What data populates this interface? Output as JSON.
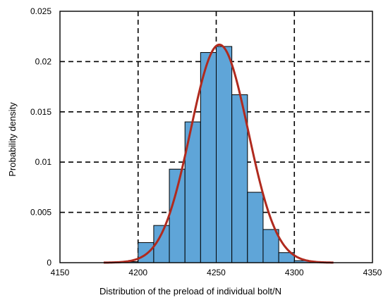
{
  "chart_data": {
    "type": "bar",
    "subtype": "histogram-with-density-curve",
    "xlabel": "Distribution of the preload of individual bolt/N",
    "ylabel": "Probability density",
    "xlim": [
      4150,
      4350
    ],
    "ylim": [
      0,
      0.025
    ],
    "x_ticks": [
      "4150",
      "4200",
      "4250",
      "4300",
      "4350"
    ],
    "y_ticks": [
      "0",
      "0.005",
      "0.01",
      "0.015",
      "0.02",
      "0.025"
    ],
    "grid": true,
    "bin_width": 10,
    "bins": [
      {
        "start": 4190,
        "end": 4200,
        "value": 0.0001
      },
      {
        "start": 4200,
        "end": 4210,
        "value": 0.002
      },
      {
        "start": 4210,
        "end": 4220,
        "value": 0.0037
      },
      {
        "start": 4220,
        "end": 4230,
        "value": 0.0093
      },
      {
        "start": 4230,
        "end": 4240,
        "value": 0.014
      },
      {
        "start": 4240,
        "end": 4250,
        "value": 0.0209
      },
      {
        "start": 4250,
        "end": 4260,
        "value": 0.0215
      },
      {
        "start": 4260,
        "end": 4270,
        "value": 0.0167
      },
      {
        "start": 4270,
        "end": 4280,
        "value": 0.007
      },
      {
        "start": 4280,
        "end": 4290,
        "value": 0.0033
      },
      {
        "start": 4290,
        "end": 4300,
        "value": 0.001
      },
      {
        "start": 4300,
        "end": 4310,
        "value": 0.0002
      }
    ],
    "density_curve": {
      "mean": 4252,
      "std": 18.4,
      "x_range": [
        4178,
        4325
      ]
    },
    "colors": {
      "bars": "#5fa5d8",
      "curve": "#b02a1e",
      "grid": "#000000"
    }
  }
}
